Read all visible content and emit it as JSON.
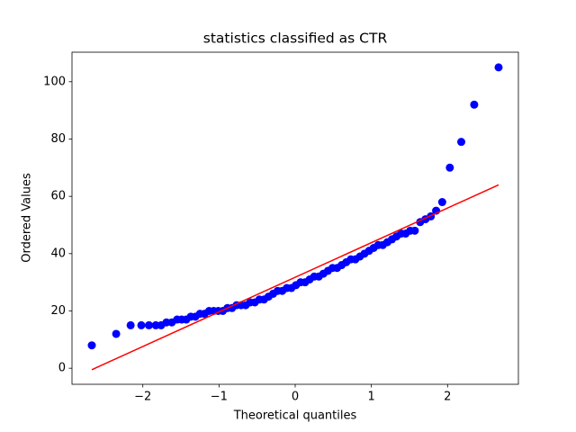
{
  "chart_data": {
    "type": "scatter",
    "title": "statistics classified as CTR",
    "x_label": "Theoretical quantiles",
    "y_label": "Ordered Values",
    "points": {
      "color": "#0000ff",
      "x": [
        -2.67,
        -2.35,
        -2.16,
        -2.02,
        -1.92,
        -1.83,
        -1.76,
        -1.69,
        -1.62,
        -1.55,
        -1.49,
        -1.43,
        -1.37,
        -1.31,
        -1.25,
        -1.19,
        -1.13,
        -1.07,
        -1.01,
        -0.95,
        -0.89,
        -0.83,
        -0.77,
        -0.71,
        -0.65,
        -0.59,
        -0.53,
        -0.47,
        -0.41,
        -0.35,
        -0.29,
        -0.23,
        -0.17,
        -0.11,
        -0.05,
        0.01,
        0.07,
        0.13,
        0.19,
        0.25,
        0.31,
        0.37,
        0.43,
        0.49,
        0.55,
        0.61,
        0.67,
        0.73,
        0.79,
        0.85,
        0.91,
        0.97,
        1.03,
        1.09,
        1.15,
        1.21,
        1.27,
        1.33,
        1.39,
        1.45,
        1.51,
        1.57,
        1.64,
        1.71,
        1.78,
        1.85,
        1.93,
        2.03,
        2.18,
        2.35,
        2.67
      ],
      "values": [
        8,
        12,
        15,
        15,
        15,
        15,
        15,
        16,
        16,
        17,
        17,
        17,
        18,
        18,
        19,
        19,
        20,
        20,
        20,
        20,
        21,
        21,
        22,
        22,
        22,
        23,
        23,
        24,
        24,
        25,
        26,
        27,
        27,
        28,
        28,
        29,
        30,
        30,
        31,
        32,
        32,
        33,
        34,
        35,
        35,
        36,
        37,
        38,
        38,
        39,
        40,
        41,
        42,
        43,
        43,
        44,
        45,
        46,
        47,
        47,
        48,
        48,
        51,
        52,
        53,
        55,
        58,
        70,
        79,
        92,
        105
      ]
    },
    "fit_line": {
      "color": "#ff0000",
      "x": [
        -2.67,
        2.67
      ],
      "values": [
        -0.5,
        64
      ]
    },
    "xlim": [
      -2.93,
      2.93
    ],
    "ylim": [
      -5.6,
      110.3
    ],
    "xticks": [
      {
        "value": -2,
        "label": "−2"
      },
      {
        "value": -1,
        "label": "−1"
      },
      0,
      1,
      2
    ],
    "yticks": [
      0,
      20,
      40,
      60,
      80,
      100
    ],
    "grid": false
  }
}
